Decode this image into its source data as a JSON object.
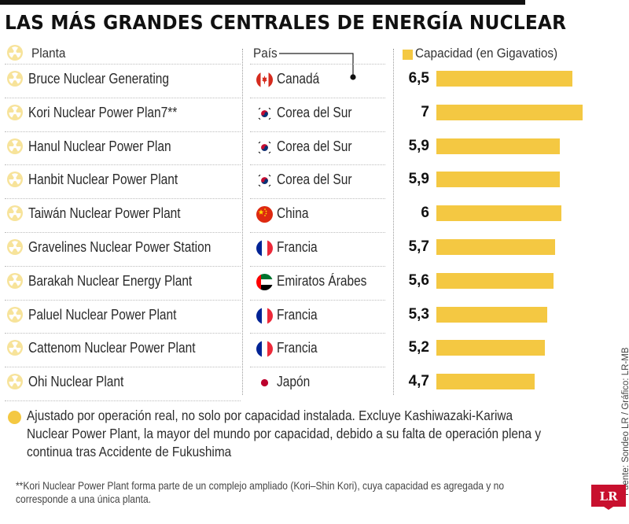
{
  "title": "LAS MÁS GRANDES CENTRALES DE ENERGÍA NUCLEAR",
  "headers": {
    "plant": "Planta",
    "country": "País",
    "capacity": "Capacidad (en Gigavatios)"
  },
  "colors": {
    "bar": "#f4c842",
    "icon": "#f2d36b",
    "title": "#111111"
  },
  "chart_data": {
    "type": "bar",
    "orientation": "horizontal",
    "title": "LAS MÁS GRANDES CENTRALES DE ENERGÍA NUCLEAR",
    "categories": [
      "Bruce Nuclear Generating",
      "Kori Nuclear Power Plan7**",
      "Hanul Nuclear Power Plan",
      "Hanbit Nuclear Power Plant",
      "Taiwán Nuclear Power Plant",
      "Gravelines Nuclear Power Station",
      "Barakah Nuclear Energy Plant",
      "Paluel Nuclear Power Plant",
      "Cattenom Nuclear Power Plant",
      "Ohi Nuclear Plant"
    ],
    "countries": [
      "Canadá",
      "Corea del Sur",
      "Corea del Sur",
      "Corea del Sur",
      "China",
      "Francia",
      "Emiratos Árabes",
      "Francia",
      "Francia",
      "Japón"
    ],
    "flags": [
      "canada-flag",
      "south-korea-flag",
      "south-korea-flag",
      "south-korea-flag",
      "china-flag",
      "france-flag",
      "uae-flag",
      "france-flag",
      "france-flag",
      "japan-flag"
    ],
    "values": [
      6.5,
      7,
      5.9,
      5.9,
      6,
      5.7,
      5.6,
      5.3,
      5.2,
      4.7
    ],
    "value_labels": [
      "6,5",
      "7",
      "5,9",
      "5,9",
      "6",
      "5,7",
      "5,6",
      "5,3",
      "5,2",
      "4,7"
    ],
    "xlim": [
      0,
      7
    ],
    "legend": "Capacidad (en Gigavatios)",
    "grid": false
  },
  "footnote": "Ajustado por operación real, no solo por capacidad instalada. Excluye Kashiwazaki-Kariwa Nuclear Power Plant, la mayor del mundo por capacidad, debido a su falta de operación plena y continua tras Accidente de Fukushima",
  "note": "**Kori Nuclear Power Plant forma parte de un complejo ampliado (Kori–Shin Kori), cuya capacidad es agregada y no corresponde a una única planta.",
  "source": "Fuente: Sondeo LR / Gráfico: LR-MB",
  "logo": "LR"
}
